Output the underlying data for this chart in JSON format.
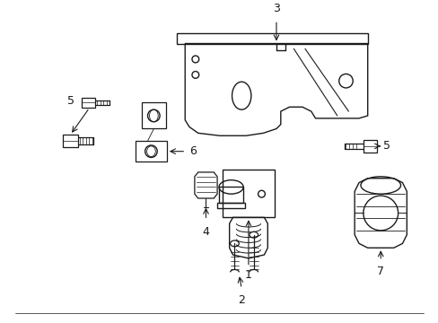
{
  "background_color": "#ffffff",
  "figsize": [
    4.89,
    3.6
  ],
  "dpi": 100,
  "line_color": "#1a1a1a",
  "label_fontsize": 9
}
